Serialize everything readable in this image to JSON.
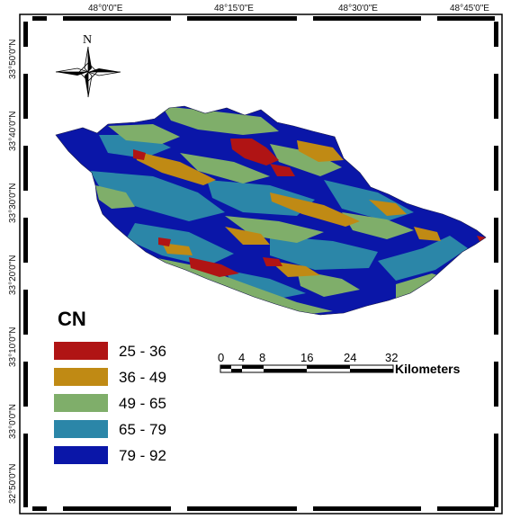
{
  "map": {
    "top_labels": [
      "48°0'0\"E",
      "48°15'0\"E",
      "48°30'0\"E",
      "48°45'0\"E"
    ],
    "left_labels": [
      "33°50'0\"N",
      "33°40'0\"N",
      "33°30'0\"N",
      "33°20'0\"N",
      "33°10'0\"N",
      "33°0'0\"N",
      "32°50'0\"N"
    ],
    "north_arrow_label": "N",
    "legend": {
      "title": "CN",
      "classes": [
        {
          "label": "25 - 36",
          "color": "#b01414"
        },
        {
          "label": "36 - 49",
          "color": "#c08a14"
        },
        {
          "label": "49 - 65",
          "color": "#7fae6a"
        },
        {
          "label": "65 - 79",
          "color": "#2b86a8"
        },
        {
          "label": "79 - 92",
          "color": "#0a16a8"
        }
      ]
    },
    "scale_bar": {
      "ticks": [
        "0",
        "4",
        "8",
        "16",
        "24",
        "32"
      ],
      "unit": "Kilometers"
    }
  }
}
